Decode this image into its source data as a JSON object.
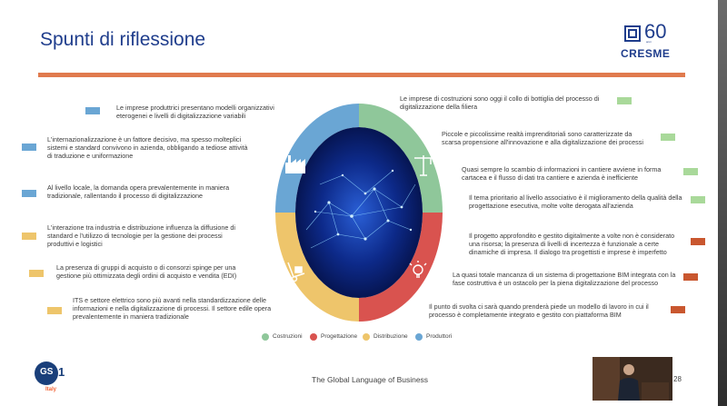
{
  "slide": {
    "title": "Spunti di riflessione",
    "page_number": "28",
    "footer": "The Global Language of Business"
  },
  "logo_cresme": {
    "number": "60",
    "subtitle": "anni",
    "name": "CRESME"
  },
  "logo_gs1": {
    "mark": "GS",
    "one": "1",
    "country": "Italy"
  },
  "colors": {
    "costruzioni": "#8fc79a",
    "progettazione": "#d9534f",
    "distribuzione": "#eec56b",
    "produttori": "#6aa6d4",
    "title": "#1f3d8c",
    "rule": "#e07a4d"
  },
  "left_points": [
    {
      "text": "Le imprese produttrici presentano modelli organizzativi eterogenei e livelli di digitalizzazione variabili",
      "category": "produttori"
    },
    {
      "text": "L'internazionalizzazione è un fattore decisivo, ma spesso molteplici sistemi e standard convivono in azienda, obbligando a tediose attività di traduzione e uniformazione",
      "category": "produttori"
    },
    {
      "text": "Al livello locale, la domanda opera prevalentemente in maniera tradizionale, rallentando il processo di digitalizzazione",
      "category": "produttori"
    },
    {
      "text": "L'interazione tra industria e distribuzione influenza la diffusione di standard e l'utilizzo di tecnologie per la gestione dei processi produttivi e logistici",
      "category": "distribuzione"
    },
    {
      "text": "La presenza di gruppi di acquisto o di consorzi spinge per una gestione più ottimizzata degli ordini di acquisto e vendita (EDI)",
      "category": "distribuzione"
    },
    {
      "text": "ITS e settore elettrico sono più avanti nella standardizzazione delle informazioni e nella digitalizzazione di processi. Il settore edile opera prevalentemente in maniera tradizionale",
      "category": "distribuzione"
    }
  ],
  "right_points": [
    {
      "text": "Le imprese di costruzioni sono oggi il collo di bottiglia del processo di digitalizzazione della filiera",
      "category": "costruzioni"
    },
    {
      "text": "Piccole e piccolissime realtà imprenditoriali sono caratterizzate da scarsa propensione all'innovazione e alla digitalizzazione dei processi",
      "category": "costruzioni"
    },
    {
      "text": "Quasi sempre lo scambio di informazioni in cantiere avviene in forma cartacea e il flusso di dati tra cantiere e azienda è inefficiente",
      "category": "costruzioni"
    },
    {
      "text": "Il tema prioritario al livello associativo è il miglioramento della qualità della progettazione esecutiva, molte volte derogata all'azienda",
      "category": "costruzioni"
    },
    {
      "text": "Il progetto approfondito e gestito digitalmente a volte non è considerato una risorsa; la presenza di livelli di incertezza è funzionale a certe dinamiche di impresa. Il dialogo tra progettisti e imprese è imperfetto",
      "category": "progettazione"
    },
    {
      "text": "La quasi totale mancanza di un sistema di progettazione BIM integrata con la fase costruttiva è un ostacolo per la piena digitalizzazione del processo",
      "category": "progettazione"
    },
    {
      "text": "Il punto di svolta ci sarà quando prenderà piede un modello di lavoro in cui il processo è completamente integrato e gestito con piattaforma BIM",
      "category": "progettazione"
    }
  ],
  "legend": [
    {
      "label": "Costruzioni",
      "category": "costruzioni"
    },
    {
      "label": "Progettazione",
      "category": "progettazione"
    },
    {
      "label": "Distribuzione",
      "category": "distribuzione"
    },
    {
      "label": "Produttori",
      "category": "produttori"
    }
  ],
  "donut_icons": [
    {
      "quadrant": "top-left",
      "icon": "factory-icon"
    },
    {
      "quadrant": "top-right",
      "icon": "crane-icon"
    },
    {
      "quadrant": "bottom-right",
      "icon": "lightbulb-icon"
    },
    {
      "quadrant": "bottom-left",
      "icon": "hand-truck-icon"
    }
  ]
}
